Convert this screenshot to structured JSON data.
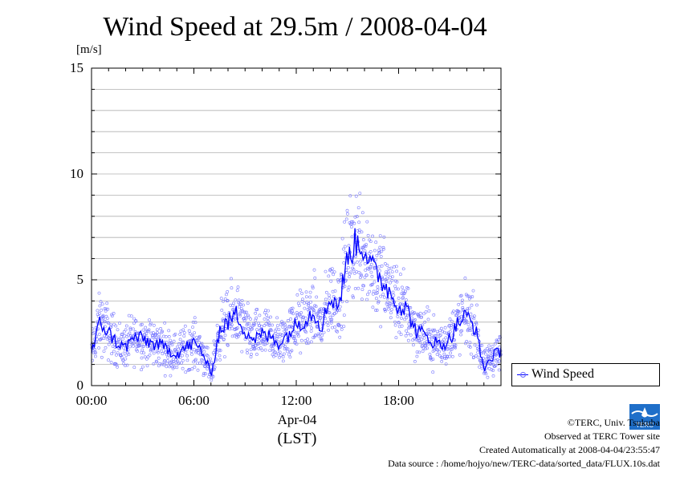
{
  "header": {
    "title": "Wind Speed at 29.5m / 2008-04-04",
    "unit": "[m/s]"
  },
  "chart_data": {
    "type": "line",
    "title": "Wind Speed at 29.5m / 2008-04-04",
    "ylabel": "[m/s]",
    "xlabel_date": "Apr-04",
    "xlabel_tz": "(LST)",
    "ylim": [
      0,
      15
    ],
    "xlim_hours": [
      0,
      24
    ],
    "y_ticks": [
      "0",
      "5",
      "10",
      "15"
    ],
    "x_ticks": [
      "00:00",
      "06:00",
      "12:00",
      "18:00"
    ],
    "grid": true,
    "legend_position": "right",
    "series": [
      {
        "name": "Wind Speed",
        "color": "#0000ff",
        "scatter_color": "#7777ff",
        "x_hours": [
          0.0,
          0.5,
          1.0,
          1.5,
          2.0,
          2.5,
          3.0,
          3.5,
          4.0,
          4.5,
          5.0,
          5.5,
          6.0,
          6.5,
          7.0,
          7.5,
          8.0,
          8.5,
          9.0,
          9.5,
          10.0,
          10.5,
          11.0,
          11.5,
          12.0,
          12.5,
          13.0,
          13.5,
          14.0,
          14.5,
          15.0,
          15.5,
          16.0,
          16.5,
          17.0,
          17.5,
          18.0,
          18.5,
          19.0,
          19.5,
          20.0,
          20.5,
          21.0,
          21.5,
          22.0,
          22.5,
          23.0,
          23.5,
          24.0
        ],
        "values": [
          1.5,
          3.0,
          2.5,
          2.0,
          1.8,
          2.3,
          2.2,
          2.0,
          1.9,
          1.7,
          1.5,
          1.8,
          2.0,
          1.6,
          0.5,
          2.6,
          3.0,
          3.4,
          2.6,
          2.2,
          2.4,
          2.3,
          2.0,
          2.4,
          2.9,
          3.1,
          3.5,
          2.8,
          4.2,
          3.8,
          6.0,
          6.8,
          6.5,
          5.5,
          5.0,
          4.4,
          3.8,
          3.6,
          2.6,
          2.4,
          2.1,
          1.9,
          2.2,
          3.0,
          3.3,
          2.7,
          0.8,
          1.4,
          1.6
        ]
      }
    ]
  },
  "credits": {
    "copyright": "©TERC, Univ. Tsukuba",
    "observed": "Observed at TERC Tower site",
    "created": "Created Automatically at 2008-04-04/23:55:47",
    "source": "Data source : /home/hojyo/new/TERC-data/sorted_data/FLUX.10s.dat",
    "logo_text": "TERC"
  }
}
